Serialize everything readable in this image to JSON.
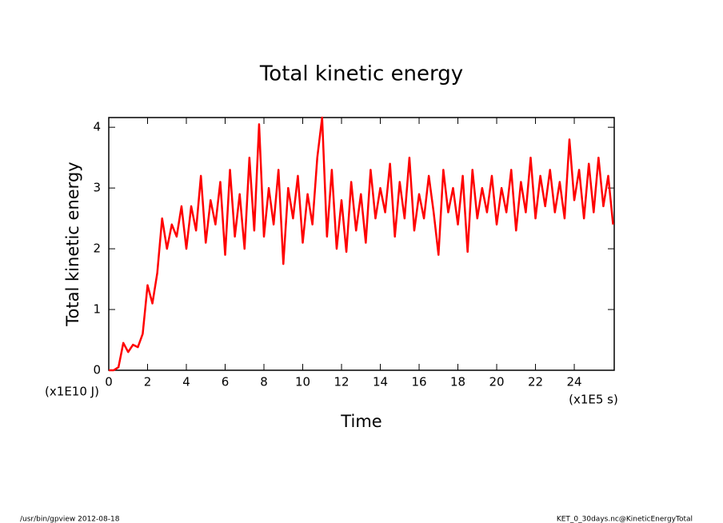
{
  "chart_data": {
    "type": "line",
    "title": "Total kinetic energy",
    "x_label": "Time",
    "y_label": "Total kinetic energy",
    "x_unit": "(x1E5 s)",
    "y_unit": "(x1E10 J)",
    "footer_left": "/usr/bin/gpview  2012-08-18",
    "footer_right": "KET_0_30days.nc@KineticEnergyTotal",
    "xlim": [
      0,
      26.06
    ],
    "ylim": [
      0,
      4.16
    ],
    "xticks": [
      0,
      2,
      4,
      6,
      8,
      10,
      12,
      14,
      16,
      18,
      20,
      22,
      24
    ],
    "yticks": [
      0,
      1,
      2,
      3,
      4
    ],
    "series": [
      {
        "name": "Total kinetic energy",
        "color": "#ff0000",
        "x": [
          0,
          0.25,
          0.5,
          0.75,
          1,
          1.25,
          1.5,
          1.75,
          2,
          2.25,
          2.5,
          2.75,
          3,
          3.25,
          3.5,
          3.75,
          4,
          4.25,
          4.5,
          4.75,
          5,
          5.25,
          5.5,
          5.75,
          6,
          6.25,
          6.5,
          6.75,
          7,
          7.25,
          7.5,
          7.75,
          8,
          8.25,
          8.5,
          8.75,
          9,
          9.25,
          9.5,
          9.75,
          10,
          10.25,
          10.5,
          10.75,
          11,
          11.25,
          11.5,
          11.75,
          12,
          12.25,
          12.5,
          12.75,
          13,
          13.25,
          13.5,
          13.75,
          14,
          14.25,
          14.5,
          14.75,
          15,
          15.25,
          15.5,
          15.75,
          16,
          16.25,
          16.5,
          16.75,
          17,
          17.25,
          17.5,
          17.75,
          18,
          18.25,
          18.5,
          18.75,
          19,
          19.25,
          19.5,
          19.75,
          20,
          20.25,
          20.5,
          20.75,
          21,
          21.25,
          21.5,
          21.75,
          22,
          22.25,
          22.5,
          22.75,
          23,
          23.25,
          23.5,
          23.75,
          24,
          24.25,
          24.5,
          24.75,
          25,
          25.25,
          25.5,
          25.75,
          26
        ],
        "values": [
          0,
          0,
          0.05,
          0.45,
          0.3,
          0.42,
          0.38,
          0.6,
          1.4,
          1.1,
          1.6,
          2.5,
          2.0,
          2.4,
          2.2,
          2.7,
          2.0,
          2.7,
          2.3,
          3.2,
          2.1,
          2.8,
          2.4,
          3.1,
          1.9,
          3.3,
          2.2,
          2.9,
          2.0,
          3.5,
          2.3,
          4.05,
          2.2,
          3.0,
          2.4,
          3.3,
          1.75,
          3.0,
          2.5,
          3.2,
          2.1,
          2.9,
          2.4,
          3.5,
          4.16,
          2.2,
          3.3,
          2.0,
          2.8,
          1.95,
          3.1,
          2.3,
          2.9,
          2.1,
          3.3,
          2.5,
          3.0,
          2.6,
          3.4,
          2.2,
          3.1,
          2.5,
          3.5,
          2.3,
          2.9,
          2.5,
          3.2,
          2.6,
          1.9,
          3.3,
          2.6,
          3.0,
          2.4,
          3.2,
          1.95,
          3.3,
          2.5,
          3.0,
          2.6,
          3.2,
          2.4,
          3.0,
          2.6,
          3.3,
          2.3,
          3.1,
          2.6,
          3.5,
          2.5,
          3.2,
          2.7,
          3.3,
          2.6,
          3.1,
          2.5,
          3.8,
          2.8,
          3.3,
          2.5,
          3.4,
          2.6,
          3.5,
          2.7,
          3.2,
          2.4
        ]
      }
    ]
  }
}
